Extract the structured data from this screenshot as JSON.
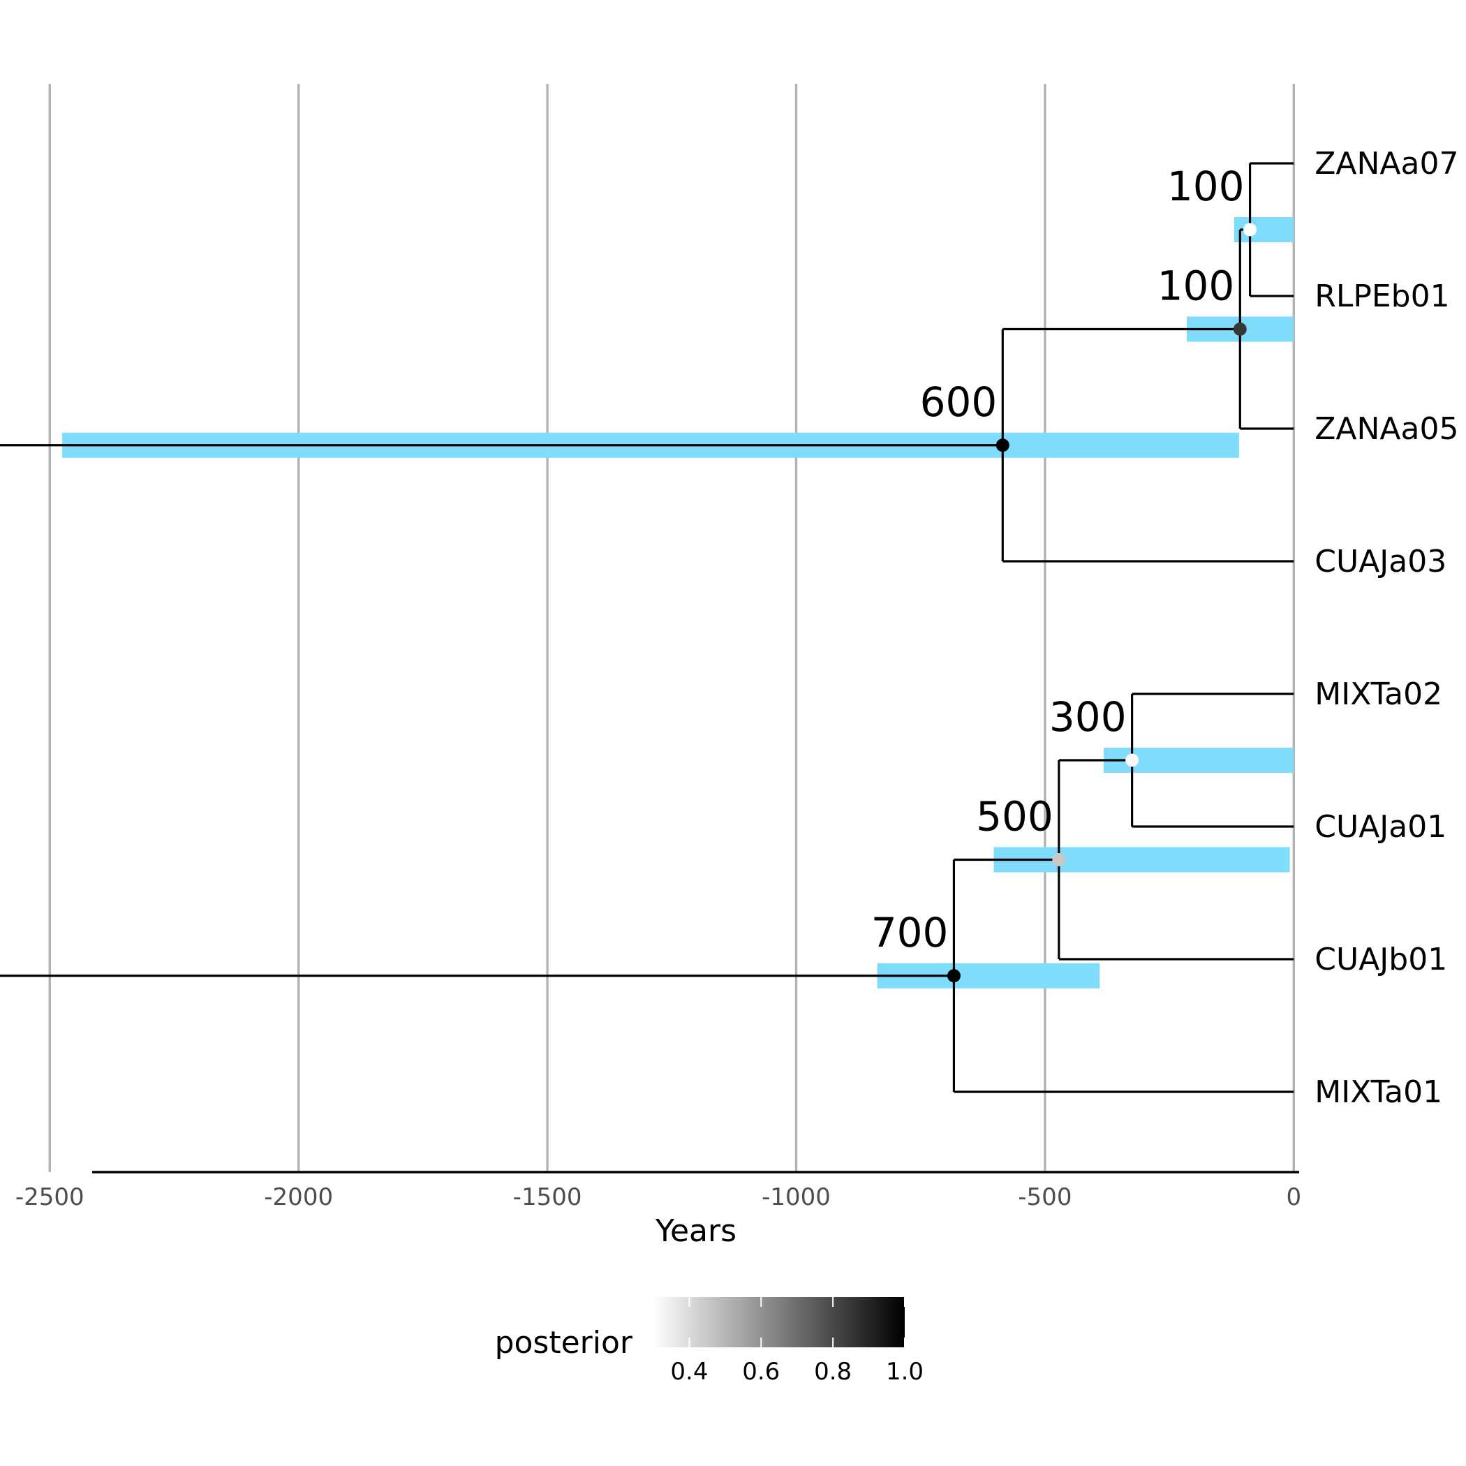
{
  "chart_data": {
    "type": "phylogenetic-tree",
    "xlabel": "Years",
    "x_ticks": [
      -2500,
      -2000,
      -1500,
      -1000,
      -500,
      0
    ],
    "xlim": [
      -2600,
      120
    ],
    "colors": {
      "hpd_bar": "#7fdcfb",
      "grid": "#b3b3b3",
      "branch": "#000000"
    },
    "tips": [
      {
        "id": "ZANAa07",
        "label": "ZANAa07",
        "x": 0,
        "row": 1
      },
      {
        "id": "RLPEb01",
        "label": "RLPEb01",
        "x": 0,
        "row": 2
      },
      {
        "id": "ZANAa05",
        "label": "ZANAa05",
        "x": 0,
        "row": 3
      },
      {
        "id": "CUAJa03",
        "label": "CUAJa03",
        "x": 0,
        "row": 4
      },
      {
        "id": "MIXTa02",
        "label": "MIXTa02",
        "x": 0,
        "row": 5
      },
      {
        "id": "CUAJa01",
        "label": "CUAJa01",
        "x": 0,
        "row": 6
      },
      {
        "id": "CUAJb01",
        "label": "CUAJb01",
        "x": 0,
        "row": 7
      },
      {
        "id": "MIXTa01",
        "label": "MIXTa01",
        "x": 0,
        "row": 8
      }
    ],
    "nodes": [
      {
        "id": "n1",
        "x": -88,
        "label": "100",
        "posterior": 0.3,
        "hpd": [
          -120,
          0
        ],
        "children": [
          "ZANAa07",
          "RLPEb01"
        ]
      },
      {
        "id": "n2",
        "x": -108,
        "label": "100",
        "posterior": 0.85,
        "hpd": [
          -215,
          0
        ],
        "children": [
          "n1",
          "ZANAa05"
        ]
      },
      {
        "id": "n3",
        "x": -585,
        "label": "600",
        "posterior": 1.0,
        "hpd": [
          -2475,
          -110
        ],
        "parent_x": -2600,
        "children": [
          "n2",
          "CUAJa03"
        ]
      },
      {
        "id": "n4",
        "x": -325,
        "label": "300",
        "posterior": 0.32,
        "hpd": [
          -382,
          0
        ],
        "children": [
          "MIXTa02",
          "CUAJa01"
        ]
      },
      {
        "id": "n5",
        "x": -472,
        "label": "500",
        "posterior": 0.45,
        "hpd": [
          -603,
          -8
        ],
        "children": [
          "n4",
          "CUAJb01"
        ]
      },
      {
        "id": "n6",
        "x": -683,
        "label": "700",
        "posterior": 1.0,
        "hpd": [
          -837,
          -390
        ],
        "parent_x": -2600,
        "children": [
          "n5",
          "MIXTa01"
        ]
      }
    ],
    "legend": {
      "title": "posterior",
      "min": 0.3,
      "max": 1.0,
      "ticks": [
        "0.4",
        "0.6",
        "0.8",
        "1.0"
      ],
      "placement": "bottom"
    }
  }
}
